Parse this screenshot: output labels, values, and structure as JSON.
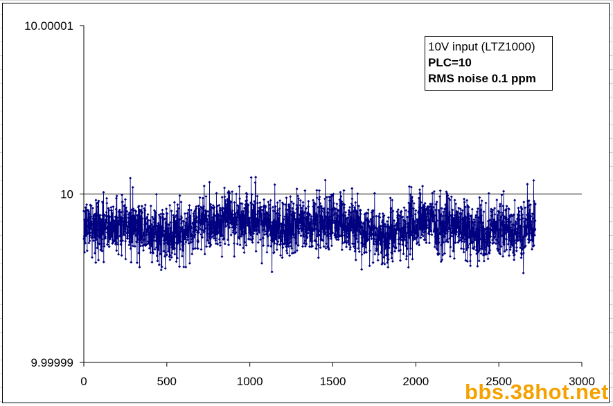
{
  "chart_data": {
    "type": "line",
    "title": "",
    "xlabel": "",
    "ylabel": "",
    "xlim": [
      0,
      3000
    ],
    "ylim": [
      9.99999,
      10.00001
    ],
    "x_ticks": [
      "0",
      "500",
      "1000",
      "1500",
      "2000",
      "2500",
      "3000"
    ],
    "y_ticks": [
      "9.99999",
      "10",
      "10.00001"
    ],
    "reference_line_y": 10,
    "series": [
      {
        "color": "#000080",
        "marker": "diamond",
        "n_points": 2720,
        "mean": 9.999998,
        "std": 1e-06,
        "min": 9.9999949,
        "max": 10.0000023,
        "trend_x": [
          0,
          100,
          200,
          300,
          400,
          500,
          600,
          700,
          800,
          900,
          1000,
          1100,
          1200,
          1300,
          1400,
          1500,
          1600,
          1700,
          1800,
          1900,
          2000,
          2100,
          2200,
          2300,
          2400,
          2500,
          2600,
          2720
        ],
        "trend_y": [
          9.9999982,
          9.9999979,
          9.9999982,
          9.9999982,
          9.9999978,
          9.9999975,
          9.9999978,
          9.9999982,
          9.9999984,
          9.9999986,
          9.9999985,
          9.9999983,
          9.9999979,
          9.9999982,
          9.9999983,
          9.9999985,
          9.9999982,
          9.9999978,
          9.9999975,
          9.9999976,
          9.9999982,
          9.9999984,
          9.9999982,
          9.9999979,
          9.9999977,
          9.999998,
          9.9999978,
          9.999998
        ]
      }
    ],
    "annotation": {
      "line1": "10V input (LTZ1000)",
      "line2": "PLC=10",
      "line3": "RMS noise 0.1 ppm"
    }
  },
  "watermark": "bbs.38hot.net",
  "colors": {
    "series": "#000080",
    "axis": "#000000",
    "watermark": "#f5a200",
    "cell_grid": "#d4d4d4"
  }
}
